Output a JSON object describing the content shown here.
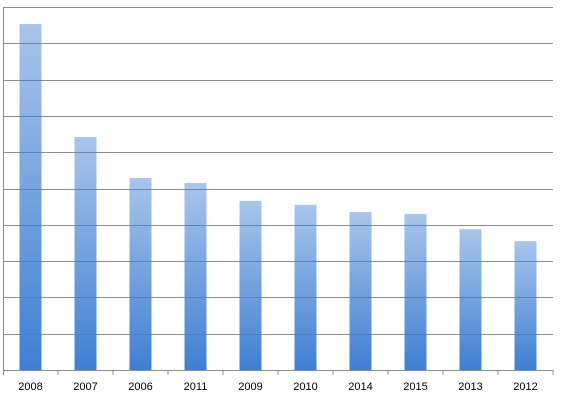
{
  "chart_data": {
    "type": "bar",
    "categories": [
      "2008",
      "2007",
      "2006",
      "2011",
      "2009",
      "2010",
      "2014",
      "2015",
      "2013",
      "2012"
    ],
    "values": [
      9.53,
      6.42,
      5.29,
      5.15,
      4.66,
      4.55,
      4.35,
      4.3,
      3.88,
      3.55
    ],
    "color": "#3f7fd2",
    "ylim": [
      0,
      10
    ],
    "yticks": [
      0,
      1,
      2,
      3,
      4,
      5,
      6,
      7,
      8,
      9,
      10
    ],
    "grid": true
  }
}
